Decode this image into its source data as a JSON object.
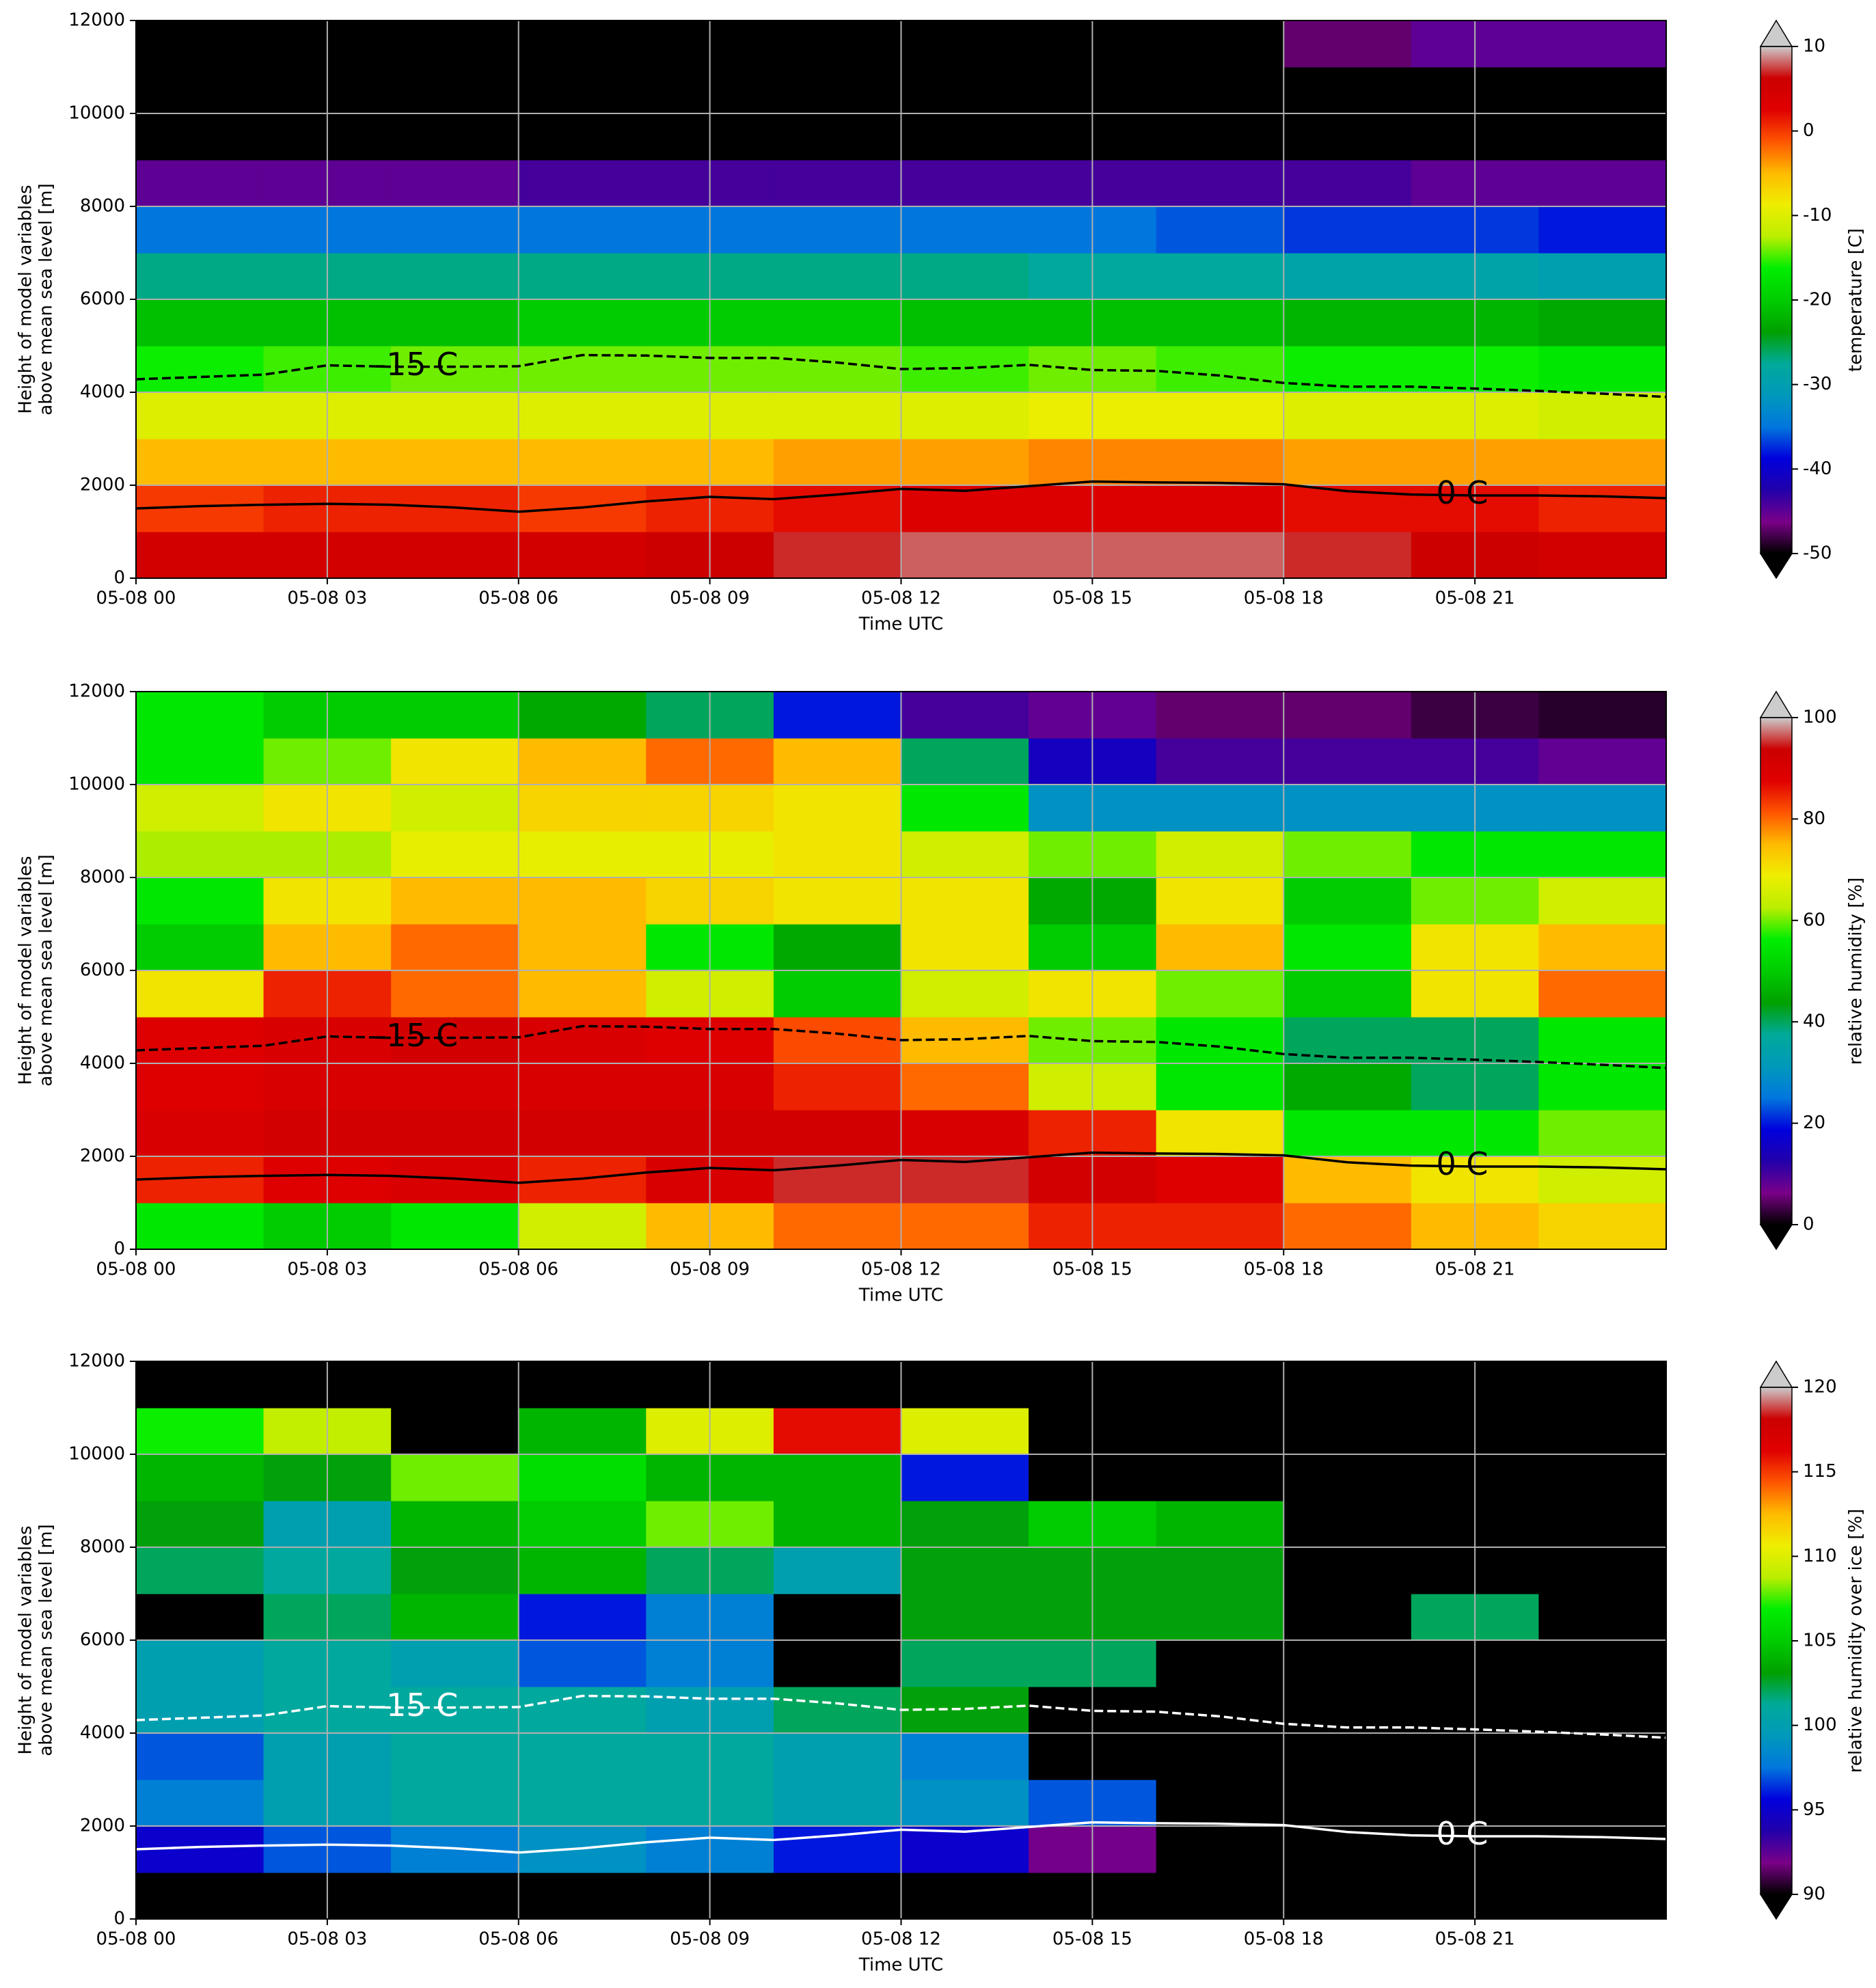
{
  "chart_data": [
    {
      "type": "heatmap",
      "xlabel": "Time UTC",
      "ylabel": [
        "Height of model variables",
        "above mean sea level [m]"
      ],
      "x": [
        1,
        3,
        5,
        7,
        9,
        11,
        13,
        15,
        17,
        19,
        21,
        23
      ],
      "y": [
        500,
        1500,
        2500,
        3500,
        4500,
        5500,
        6500,
        7500,
        8500,
        9500,
        10500,
        11500
      ],
      "values": [
        [
          5,
          5,
          5,
          5,
          6,
          7,
          8,
          8,
          8,
          7,
          6,
          5
        ],
        [
          0,
          1,
          1,
          0,
          1,
          2,
          3,
          3,
          3,
          2,
          2,
          1
        ],
        [
          -5,
          -5,
          -5,
          -5,
          -5,
          -4,
          -4,
          -3,
          -3,
          -4,
          -4,
          -4
        ],
        [
          -10,
          -10,
          -10,
          -10,
          -10,
          -10,
          -10,
          -9,
          -9,
          -10,
          -10,
          -11
        ],
        [
          -16,
          -15,
          -14,
          -14,
          -14,
          -14,
          -15,
          -14,
          -15,
          -16,
          -16,
          -17
        ],
        [
          -21,
          -21,
          -21,
          -20,
          -20,
          -20,
          -21,
          -21,
          -21,
          -22,
          -22,
          -23
        ],
        [
          -27,
          -27,
          -27,
          -27,
          -27,
          -27,
          -27,
          -28,
          -28,
          -29,
          -29,
          -30
        ],
        [
          -35,
          -35,
          -35,
          -35,
          -35,
          -35,
          -35,
          -35,
          -36,
          -37,
          -37,
          -38
        ],
        [
          -45,
          -45,
          -45,
          -44,
          -44,
          -44,
          -44,
          -44,
          -44,
          -44,
          -45,
          -45
        ],
        [
          -52,
          -52,
          -52,
          -52,
          -52,
          -52,
          -52,
          -51,
          -51,
          -51,
          -51,
          -52
        ],
        [
          -55,
          -55,
          -55,
          -55,
          -55,
          -54,
          -53,
          -52,
          -51,
          -51,
          -52,
          -53
        ],
        [
          -55,
          -55,
          -55,
          -55,
          -55,
          -55,
          -55,
          -54,
          -50,
          -47,
          -45,
          -45
        ]
      ],
      "xlim": [
        0,
        24
      ],
      "ylim": [
        0,
        12000
      ],
      "xticks": [
        {
          "value": 0,
          "label": "05-08 00"
        },
        {
          "value": 3,
          "label": "05-08 03"
        },
        {
          "value": 6,
          "label": "05-08 06"
        },
        {
          "value": 9,
          "label": "05-08 09"
        },
        {
          "value": 12,
          "label": "05-08 12"
        },
        {
          "value": 15,
          "label": "05-08 15"
        },
        {
          "value": 18,
          "label": "05-08 18"
        },
        {
          "value": 21,
          "label": "05-08 21"
        }
      ],
      "yticks": [
        0,
        2000,
        4000,
        6000,
        8000,
        10000,
        12000
      ],
      "grid": true,
      "colormap": [
        "#000000",
        "#7a0088",
        "#2200aa",
        "#0000dd",
        "#0077dd",
        "#0099bb",
        "#00aa99",
        "#00a000",
        "#00cc00",
        "#00ee00",
        "#bbee00",
        "#eeee00",
        "#ffbb00",
        "#ff5500",
        "#e00000",
        "#cc0000",
        "#cccccc"
      ],
      "colorbar": {
        "label": "temperature [C]",
        "lim": [
          -50,
          10
        ],
        "ticks": [
          -50,
          -40,
          -30,
          -20,
          -10,
          0,
          10
        ]
      },
      "contours": [
        {
          "label": "0 C",
          "color": "#000000",
          "dashed": false,
          "x": [
            0,
            1,
            2,
            3,
            4,
            5,
            6,
            7,
            8,
            9,
            10,
            11,
            12,
            13,
            14,
            15,
            16,
            17,
            18,
            19,
            20,
            21,
            22,
            23,
            24
          ],
          "values": [
            1500,
            1550,
            1580,
            1600,
            1580,
            1520,
            1430,
            1520,
            1650,
            1750,
            1700,
            1800,
            1920,
            1880,
            1980,
            2080,
            2060,
            2050,
            2020,
            1870,
            1800,
            1780,
            1780,
            1760,
            1720
          ]
        },
        {
          "label": "-15 C",
          "color": "#000000",
          "dashed": true,
          "x": [
            0,
            1,
            2,
            3,
            4,
            5,
            6,
            7,
            8,
            9,
            10,
            11,
            12,
            13,
            14,
            15,
            16,
            17,
            18,
            19,
            20,
            21,
            22,
            23,
            24
          ],
          "values": [
            4280,
            4330,
            4380,
            4580,
            4550,
            4550,
            4560,
            4800,
            4790,
            4740,
            4740,
            4640,
            4500,
            4520,
            4590,
            4480,
            4460,
            4360,
            4200,
            4120,
            4120,
            4080,
            4030,
            3970,
            3900
          ]
        }
      ]
    },
    {
      "type": "heatmap",
      "xlabel": "Time UTC",
      "ylabel": [
        "Height of model variables",
        "above mean sea level [m]"
      ],
      "x": [
        1,
        3,
        5,
        7,
        9,
        11,
        13,
        15,
        17,
        19,
        21,
        23
      ],
      "y": [
        500,
        1500,
        2500,
        3500,
        4500,
        5500,
        6500,
        7500,
        8500,
        9500,
        10500,
        11500
      ],
      "values": [
        [
          55,
          50,
          55,
          65,
          75,
          80,
          80,
          85,
          85,
          80,
          75,
          72
        ],
        [
          85,
          88,
          90,
          85,
          90,
          95,
          95,
          92,
          88,
          75,
          70,
          65
        ],
        [
          90,
          92,
          92,
          92,
          92,
          92,
          90,
          85,
          70,
          55,
          55,
          60
        ],
        [
          88,
          90,
          90,
          90,
          90,
          85,
          80,
          65,
          55,
          45,
          40,
          55
        ],
        [
          88,
          90,
          92,
          90,
          88,
          82,
          75,
          60,
          55,
          40,
          40,
          55
        ],
        [
          70,
          85,
          80,
          75,
          65,
          50,
          65,
          70,
          60,
          50,
          70,
          80
        ],
        [
          50,
          75,
          80,
          75,
          55,
          45,
          70,
          50,
          75,
          55,
          70,
          75
        ],
        [
          55,
          70,
          75,
          75,
          72,
          70,
          70,
          45,
          70,
          50,
          60,
          65
        ],
        [
          62,
          62,
          68,
          68,
          68,
          70,
          65,
          60,
          65,
          60,
          55,
          55
        ],
        [
          65,
          70,
          65,
          72,
          72,
          70,
          55,
          30,
          30,
          30,
          30,
          30
        ],
        [
          55,
          60,
          70,
          75,
          80,
          75,
          40,
          15,
          10,
          10,
          10,
          8
        ],
        [
          55,
          50,
          50,
          45,
          40,
          20,
          10,
          8,
          5,
          5,
          3,
          2
        ]
      ],
      "xlim": [
        0,
        24
      ],
      "ylim": [
        0,
        12000
      ],
      "xticks": [
        {
          "value": 0,
          "label": "05-08 00"
        },
        {
          "value": 3,
          "label": "05-08 03"
        },
        {
          "value": 6,
          "label": "05-08 06"
        },
        {
          "value": 9,
          "label": "05-08 09"
        },
        {
          "value": 12,
          "label": "05-08 12"
        },
        {
          "value": 15,
          "label": "05-08 15"
        },
        {
          "value": 18,
          "label": "05-08 18"
        },
        {
          "value": 21,
          "label": "05-08 21"
        }
      ],
      "yticks": [
        0,
        2000,
        4000,
        6000,
        8000,
        10000,
        12000
      ],
      "grid": true,
      "colormap": [
        "#000000",
        "#7a0088",
        "#2200aa",
        "#0000dd",
        "#0077dd",
        "#0099bb",
        "#00aa99",
        "#00a000",
        "#00cc00",
        "#00ee00",
        "#bbee00",
        "#eeee00",
        "#ffbb00",
        "#ff5500",
        "#e00000",
        "#cc0000",
        "#cccccc"
      ],
      "colorbar": {
        "label": "relative humidity [%]",
        "lim": [
          0,
          100
        ],
        "ticks": [
          0,
          20,
          40,
          60,
          80,
          100
        ]
      },
      "contours": [
        {
          "label": "0 C",
          "color": "#000000",
          "dashed": false,
          "x": [
            0,
            1,
            2,
            3,
            4,
            5,
            6,
            7,
            8,
            9,
            10,
            11,
            12,
            13,
            14,
            15,
            16,
            17,
            18,
            19,
            20,
            21,
            22,
            23,
            24
          ],
          "values": [
            1500,
            1550,
            1580,
            1600,
            1580,
            1520,
            1430,
            1520,
            1650,
            1750,
            1700,
            1800,
            1920,
            1880,
            1980,
            2080,
            2060,
            2050,
            2020,
            1870,
            1800,
            1780,
            1780,
            1760,
            1720
          ]
        },
        {
          "label": "-15 C",
          "color": "#000000",
          "dashed": true,
          "x": [
            0,
            1,
            2,
            3,
            4,
            5,
            6,
            7,
            8,
            9,
            10,
            11,
            12,
            13,
            14,
            15,
            16,
            17,
            18,
            19,
            20,
            21,
            22,
            23,
            24
          ],
          "values": [
            4280,
            4330,
            4380,
            4580,
            4550,
            4550,
            4560,
            4800,
            4790,
            4740,
            4740,
            4640,
            4500,
            4520,
            4590,
            4480,
            4460,
            4360,
            4200,
            4120,
            4120,
            4080,
            4030,
            3970,
            3900
          ]
        }
      ]
    },
    {
      "type": "heatmap",
      "xlabel": "Time UTC",
      "ylabel": [
        "Height of model variables",
        "above mean sea level [m]"
      ],
      "x": [
        1,
        3,
        5,
        7,
        9,
        11,
        13,
        15,
        17,
        19,
        21,
        23
      ],
      "y": [
        500,
        1500,
        2500,
        3500,
        4500,
        5500,
        6500,
        7500,
        8500,
        9500,
        10500,
        11500
      ],
      "values": [
        [
          60,
          60,
          60,
          60,
          60,
          60,
          60,
          60,
          60,
          60,
          60,
          60
        ],
        [
          95,
          97,
          98,
          99,
          98,
          96,
          95,
          92,
          60,
          60,
          60,
          60
        ],
        [
          98,
          100,
          101,
          101,
          101,
          100,
          99,
          97,
          60,
          60,
          60,
          60
        ],
        [
          97,
          100,
          101,
          101,
          101,
          100,
          98,
          60,
          60,
          60,
          60,
          60
        ],
        [
          100,
          101,
          101,
          101,
          100,
          102,
          103,
          60,
          60,
          60,
          60,
          60
        ],
        [
          100,
          101,
          100,
          97,
          98,
          60,
          102,
          102,
          60,
          60,
          60,
          60
        ],
        [
          60,
          102,
          104,
          96,
          98,
          60,
          103,
          103,
          103,
          60,
          102,
          60
        ],
        [
          102,
          101,
          103,
          104,
          102,
          100,
          103,
          103,
          103,
          60,
          60,
          60
        ],
        [
          103,
          100,
          104,
          105,
          108,
          104,
          103,
          105,
          104,
          60,
          60,
          60
        ],
        [
          104,
          103,
          108,
          106,
          104,
          104,
          96,
          60,
          60,
          60,
          60,
          60
        ],
        [
          107,
          109,
          60,
          104,
          110,
          116,
          110,
          60,
          60,
          60,
          60,
          60
        ],
        [
          60,
          60,
          60,
          60,
          60,
          60,
          60,
          60,
          60,
          60,
          60,
          60
        ]
      ],
      "xlim": [
        0,
        24
      ],
      "ylim": [
        0,
        12000
      ],
      "xticks": [
        {
          "value": 0,
          "label": "05-08 00"
        },
        {
          "value": 3,
          "label": "05-08 03"
        },
        {
          "value": 6,
          "label": "05-08 06"
        },
        {
          "value": 9,
          "label": "05-08 09"
        },
        {
          "value": 12,
          "label": "05-08 12"
        },
        {
          "value": 15,
          "label": "05-08 15"
        },
        {
          "value": 18,
          "label": "05-08 18"
        },
        {
          "value": 21,
          "label": "05-08 21"
        }
      ],
      "yticks": [
        0,
        2000,
        4000,
        6000,
        8000,
        10000,
        12000
      ],
      "grid": true,
      "colormap": [
        "#000000",
        "#7a0088",
        "#2200aa",
        "#0000dd",
        "#0077dd",
        "#0099bb",
        "#00aa99",
        "#00a000",
        "#00cc00",
        "#00ee00",
        "#bbee00",
        "#eeee00",
        "#ffbb00",
        "#ff5500",
        "#e00000",
        "#cc0000",
        "#cccccc"
      ],
      "colorbar": {
        "label": "relative humidity over ice [%]",
        "lim": [
          90,
          120
        ],
        "ticks": [
          90,
          95,
          100,
          105,
          110,
          115,
          120
        ]
      },
      "contours": [
        {
          "label": "0 C",
          "color": "#ffffff",
          "dashed": false,
          "x": [
            0,
            1,
            2,
            3,
            4,
            5,
            6,
            7,
            8,
            9,
            10,
            11,
            12,
            13,
            14,
            15,
            16,
            17,
            18,
            19,
            20,
            21,
            22,
            23,
            24
          ],
          "values": [
            1500,
            1550,
            1580,
            1600,
            1580,
            1520,
            1430,
            1520,
            1650,
            1750,
            1700,
            1800,
            1920,
            1880,
            1980,
            2080,
            2060,
            2050,
            2020,
            1870,
            1800,
            1780,
            1780,
            1760,
            1720
          ]
        },
        {
          "label": "-15 C",
          "color": "#ffffff",
          "dashed": true,
          "x": [
            0,
            1,
            2,
            3,
            4,
            5,
            6,
            7,
            8,
            9,
            10,
            11,
            12,
            13,
            14,
            15,
            16,
            17,
            18,
            19,
            20,
            21,
            22,
            23,
            24
          ],
          "values": [
            4280,
            4330,
            4380,
            4580,
            4550,
            4550,
            4560,
            4800,
            4790,
            4740,
            4740,
            4640,
            4500,
            4520,
            4590,
            4480,
            4460,
            4360,
            4200,
            4120,
            4120,
            4080,
            4030,
            3970,
            3900
          ]
        }
      ]
    }
  ]
}
